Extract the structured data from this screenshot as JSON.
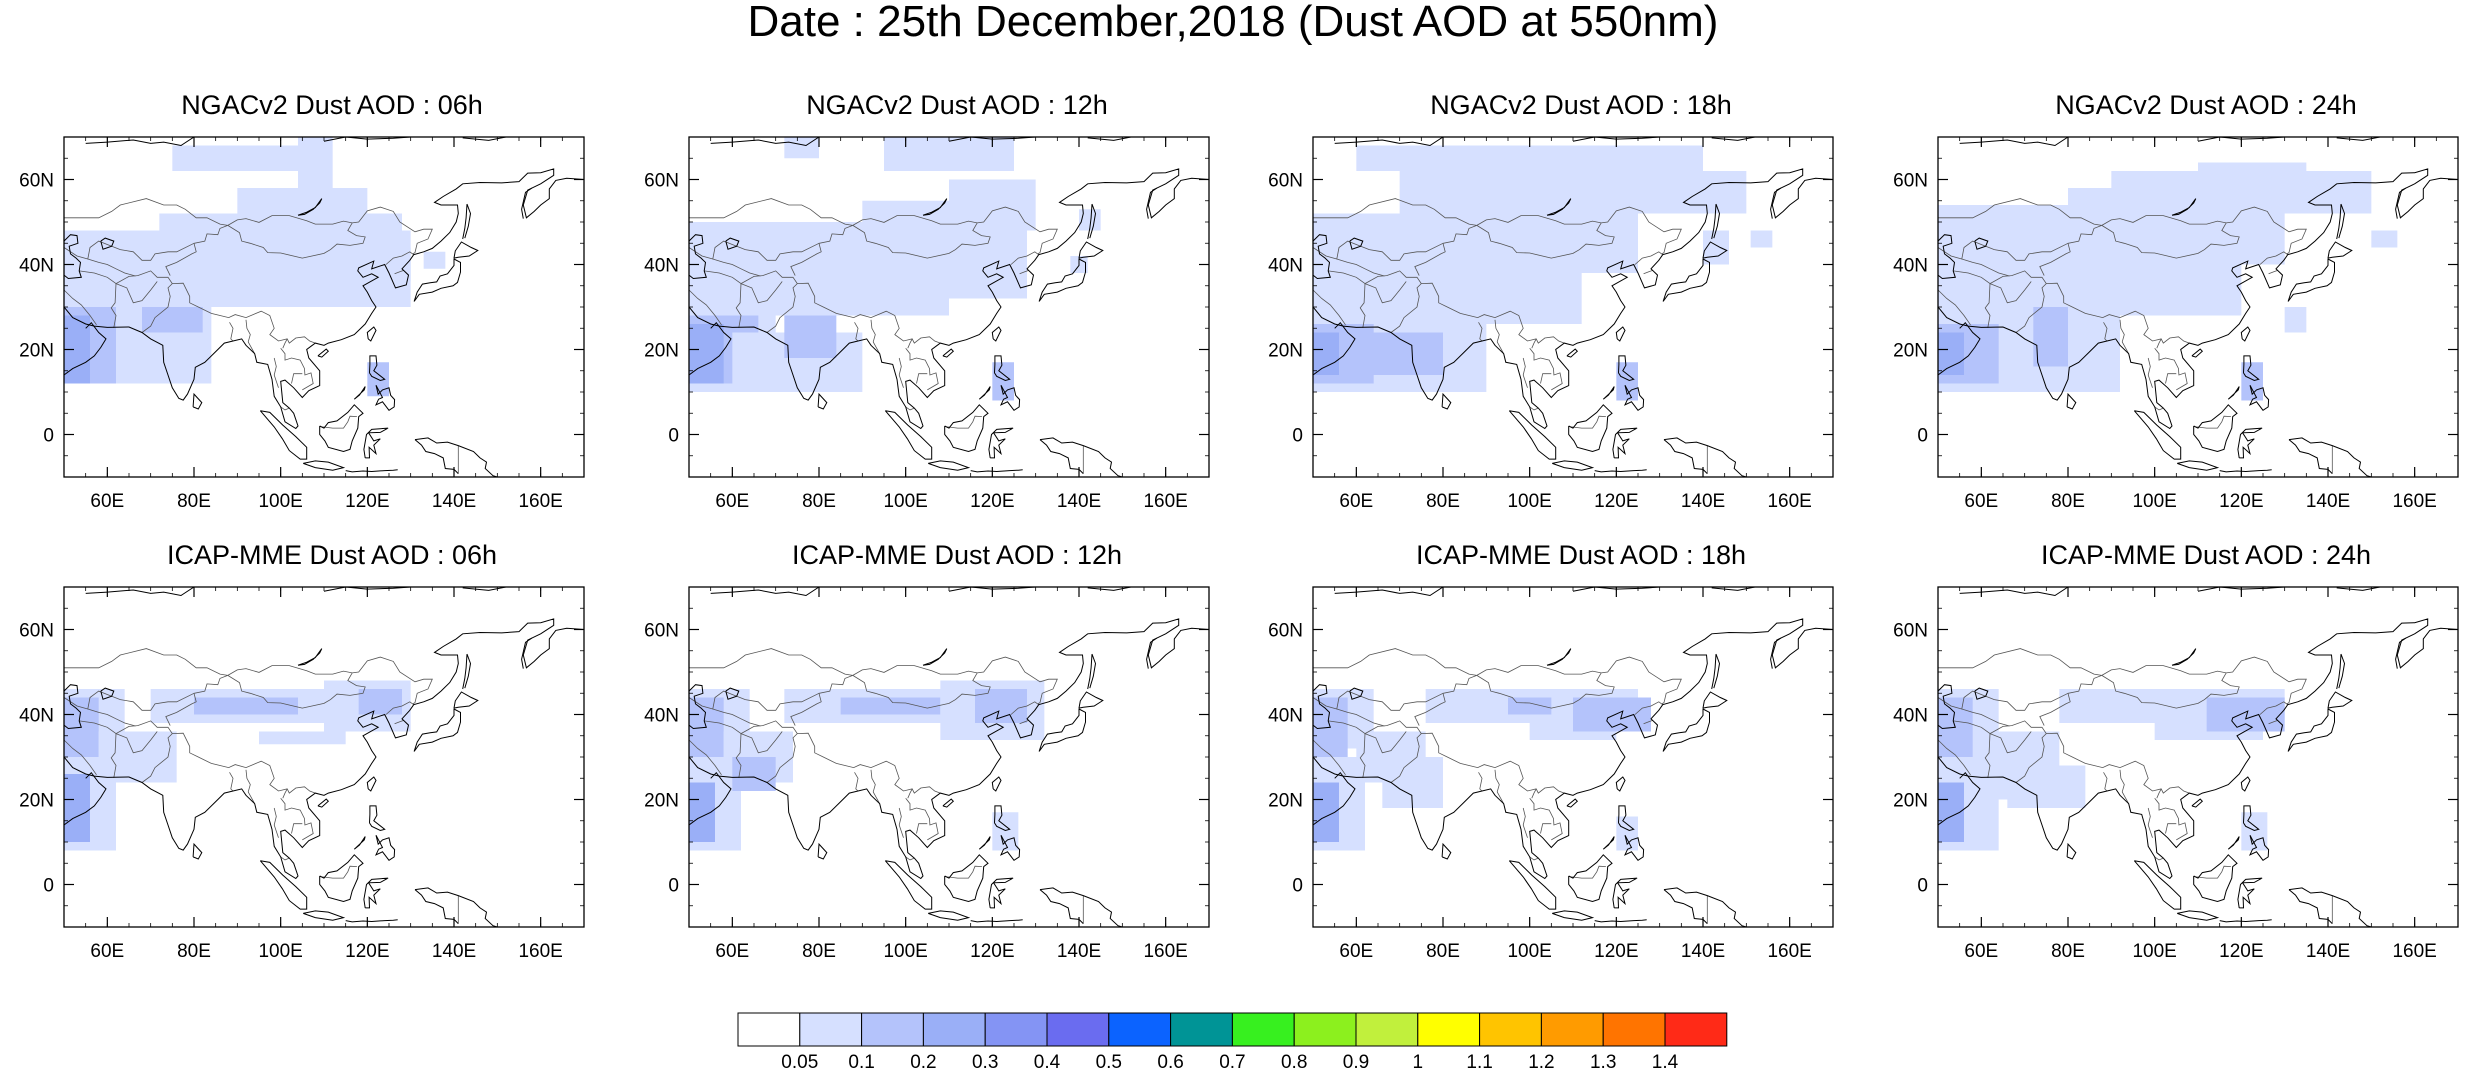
{
  "figure": {
    "title": "Date : 25th December,2018 (Dust AOD at 550nm)"
  },
  "panels": [
    {
      "title": "NGACv2 Dust AOD : 06h",
      "model": "NGACv2",
      "hour": "06h"
    },
    {
      "title": "NGACv2 Dust AOD : 12h",
      "model": "NGACv2",
      "hour": "12h"
    },
    {
      "title": "NGACv2 Dust AOD : 18h",
      "model": "NGACv2",
      "hour": "18h"
    },
    {
      "title": "NGACv2 Dust AOD : 24h",
      "model": "NGACv2",
      "hour": "24h"
    },
    {
      "title": "ICAP-MME Dust AOD : 06h",
      "model": "ICAP-MME",
      "hour": "06h"
    },
    {
      "title": "ICAP-MME Dust AOD : 12h",
      "model": "ICAP-MME",
      "hour": "12h"
    },
    {
      "title": "ICAP-MME Dust AOD : 18h",
      "model": "ICAP-MME",
      "hour": "18h"
    },
    {
      "title": "ICAP-MME Dust AOD : 24h",
      "model": "ICAP-MME",
      "hour": "24h"
    }
  ],
  "map_axes": {
    "lon_ticks": [
      "60E",
      "80E",
      "100E",
      "120E",
      "140E",
      "160E"
    ],
    "lat_ticks": [
      "60N",
      "40N",
      "20N",
      "0"
    ],
    "lon_values": [
      60,
      80,
      100,
      120,
      140,
      160
    ],
    "lat_values": [
      60,
      40,
      20,
      0
    ],
    "lon_range": [
      50,
      170
    ],
    "lat_range": [
      -10,
      70
    ]
  },
  "colorbar": {
    "levels": [
      "0.05",
      "0.1",
      "0.2",
      "0.3",
      "0.4",
      "0.5",
      "0.6",
      "0.7",
      "0.8",
      "0.9",
      "1",
      "1.1",
      "1.2",
      "1.3",
      "1.4"
    ],
    "colors": [
      "#ffffff",
      "#d6e0ff",
      "#b4c3fb",
      "#9aaff7",
      "#8494f4",
      "#6a6cf0",
      "#0b63ff",
      "#009496",
      "#37f01f",
      "#8cf01e",
      "#c1f03c",
      "#ffff00",
      "#ffc400",
      "#ff9b00",
      "#ff7400",
      "#ff2a17"
    ]
  },
  "dust_colors": {
    "low": "#d6e0ff",
    "medium": "#b4c3fb",
    "high": "#9aaff7",
    "coast": "#000000"
  }
}
